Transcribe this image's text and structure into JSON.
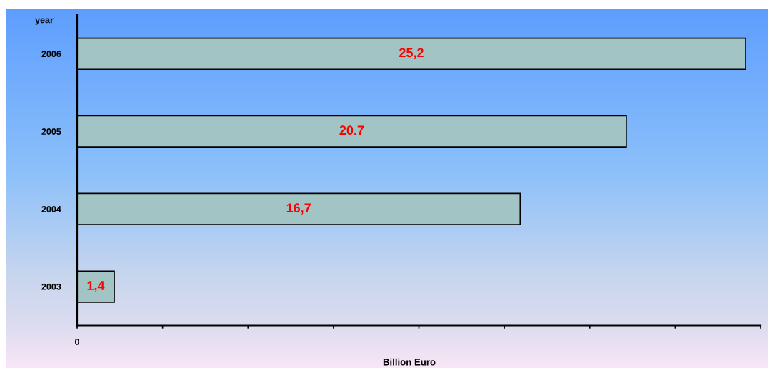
{
  "chart_data": {
    "type": "bar",
    "orientation": "horizontal",
    "categories": [
      "2006",
      "2005",
      "2004",
      "2003"
    ],
    "values": [
      25.2,
      20.7,
      16.7,
      1.4
    ],
    "value_labels": [
      "25,2",
      "20.7",
      "16,7",
      "1,4"
    ],
    "color": "#a3c4c5",
    "xlabel": "Billion Euro",
    "ylabel": "year",
    "annotations": [
      "0"
    ],
    "grid": false,
    "legend": false
  }
}
